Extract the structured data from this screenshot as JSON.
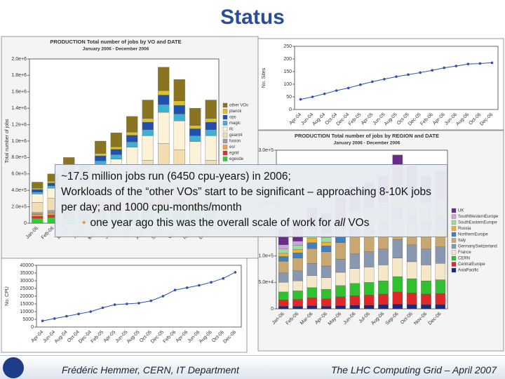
{
  "title": "Status",
  "textbox": {
    "lines": [
      "~17.5 million jobs run (6450 cpu-years) in 2006;",
      "Workloads of the “other VOs” start to be significant – approaching 8-10K jobs per day; and 1000 cpu-months/month"
    ],
    "bullet": [
      "one year ago this was the overall scale of work for ",
      "all",
      " VOs"
    ]
  },
  "footer": {
    "left": "Frédéric Hemmer, CERN, IT Department",
    "right": "The LHC Computing Grid – April 2007"
  },
  "chart_data": [
    {
      "type": "bar",
      "stacked": true,
      "title": "PRODUCTION Total number of jobs by VO and DATE",
      "subtitle": "January 2006 - December 2006",
      "y_label": "Total number of jobs",
      "categories": [
        "Jan-06",
        "Feb-06",
        "Mar-06",
        "Apr-06",
        "May-06",
        "Jun-06",
        "Jul-06",
        "Aug-06",
        "Sep-06",
        "Oct-06",
        "Nov-06",
        "Dec-06"
      ],
      "ylim": [
        0,
        2000000
      ],
      "yticks": [
        0,
        {
          "value": 200000,
          "label": "2.0e+5"
        },
        {
          "value": 400000,
          "label": "4.0e+5"
        },
        {
          "value": 600000,
          "label": "6.0e+5"
        },
        {
          "value": 800000,
          "label": "8.0e+5"
        },
        {
          "value": 1000000,
          "label": "1.0e+6"
        },
        {
          "value": 1200000,
          "label": "1.2e+6"
        },
        {
          "value": 1400000,
          "label": "1.4e+6"
        },
        {
          "value": 1600000,
          "label": "1.6e+6"
        },
        {
          "value": 1800000,
          "label": "1.8e+6"
        },
        {
          "value": 2000000,
          "label": "2.0e+6"
        }
      ],
      "grid": false,
      "series": [
        {
          "name": "egeode",
          "color": "#33cc33",
          "values": [
            60000,
            70000,
            100000,
            80000,
            120000,
            130000,
            160000,
            180000,
            230000,
            210000,
            170000,
            180000
          ]
        },
        {
          "name": "egrid",
          "color": "#e03030",
          "values": [
            25000,
            30000,
            40000,
            35000,
            50000,
            55000,
            65000,
            75000,
            95000,
            90000,
            70000,
            75000
          ]
        },
        {
          "name": "esr",
          "color": "#f0a040",
          "values": [
            20000,
            25000,
            30000,
            30000,
            40000,
            45000,
            50000,
            60000,
            75000,
            70000,
            55000,
            60000
          ]
        },
        {
          "name": "fusion",
          "color": "#a0a0a0",
          "values": [
            25000,
            30000,
            40000,
            35000,
            50000,
            55000,
            65000,
            75000,
            95000,
            90000,
            70000,
            75000
          ]
        },
        {
          "name": "geant4",
          "color": "#f2dcb0",
          "values": [
            125000,
            150000,
            200000,
            175000,
            250000,
            275000,
            325000,
            375000,
            475000,
            435000,
            350000,
            375000
          ]
        },
        {
          "name": "ilc",
          "color": "#fbf2d8",
          "values": [
            100000,
            120000,
            160000,
            140000,
            200000,
            220000,
            260000,
            300000,
            380000,
            350000,
            280000,
            300000
          ]
        },
        {
          "name": "magic",
          "color": "#40b0d0",
          "values": [
            25000,
            30000,
            40000,
            35000,
            50000,
            55000,
            65000,
            75000,
            95000,
            85000,
            70000,
            75000
          ]
        },
        {
          "name": "ops",
          "color": "#2050b0",
          "values": [
            30000,
            35000,
            50000,
            40000,
            60000,
            65000,
            80000,
            90000,
            115000,
            105000,
            85000,
            90000
          ]
        },
        {
          "name": "planck",
          "color": "#d8c030",
          "values": [
            15000,
            20000,
            25000,
            20000,
            30000,
            30000,
            40000,
            45000,
            55000,
            55000,
            40000,
            45000
          ]
        },
        {
          "name": "other VOs",
          "color": "#8a7420",
          "values": [
            75000,
            90000,
            115000,
            110000,
            150000,
            170000,
            190000,
            225000,
            285000,
            260000,
            210000,
            225000
          ]
        }
      ]
    },
    {
      "type": "line",
      "y_label": "No. Sites",
      "color": "#3050b0",
      "categories": [
        "Apr-04",
        "Jun-04",
        "Aug-04",
        "Oct-04",
        "Dec-04",
        "Feb-05",
        "Apr-05",
        "Jun-05",
        "Aug-05",
        "Oct-05",
        "Dec-05",
        "Feb-06",
        "Apr-06",
        "Jun-06",
        "Aug-06",
        "Oct-06",
        "Dec-06"
      ],
      "values": [
        40,
        50,
        62,
        75,
        85,
        98,
        110,
        120,
        130,
        138,
        146,
        155,
        165,
        172,
        180,
        182,
        185
      ],
      "ylim": [
        0,
        250
      ],
      "yticks": [
        0,
        50,
        100,
        150,
        200,
        250
      ],
      "grid": false
    },
    {
      "type": "bar",
      "stacked": true,
      "title": "PRODUCTION Total number of jobs by REGION and DATE",
      "subtitle": "January 2006 - December 2006",
      "categories": [
        "Jan-06",
        "Feb-06",
        "Mar-06",
        "Apr-06",
        "May-06",
        "Jun-06",
        "Jul-06",
        "Aug-06",
        "Sep-06",
        "Oct-06",
        "Nov-06",
        "Dec-06"
      ],
      "ylim": [
        0,
        300000
      ],
      "yticks": [
        0,
        {
          "value": 50000,
          "label": "5.0e+4"
        },
        {
          "value": 100000,
          "label": "1.0e+5"
        },
        {
          "value": 150000,
          "label": "1.5e+5"
        },
        {
          "value": 200000,
          "label": "2.0e+5"
        },
        {
          "value": 250000,
          "label": "2.5e+5"
        },
        {
          "value": 300000,
          "label": "3.0e+5"
        }
      ],
      "grid": false,
      "series": [
        {
          "name": "AsiaPacific",
          "color": "#1a2a80",
          "values": [
            5000,
            5000,
            6000,
            5000,
            6000,
            7000,
            7000,
            8000,
            9000,
            8000,
            8000,
            8000
          ]
        },
        {
          "name": "CentralEurope",
          "color": "#e02828",
          "values": [
            12000,
            13000,
            15000,
            14000,
            17000,
            18000,
            19000,
            20000,
            23000,
            22000,
            20000,
            21000
          ]
        },
        {
          "name": "CERN",
          "color": "#30c030",
          "values": [
            15000,
            16000,
            19000,
            18000,
            21000,
            23000,
            24000,
            25000,
            29000,
            27000,
            25000,
            26000
          ]
        },
        {
          "name": "France",
          "color": "#f4e8c8",
          "values": [
            18000,
            19000,
            23000,
            22000,
            25000,
            28000,
            29000,
            30000,
            35000,
            32000,
            30000,
            31000
          ]
        },
        {
          "name": "GermanySwitzerland",
          "color": "#8898b0",
          "values": [
            18000,
            19000,
            23000,
            22000,
            25000,
            28000,
            29000,
            30000,
            35000,
            32000,
            30000,
            31000
          ]
        },
        {
          "name": "Italy",
          "color": "#c8a870",
          "values": [
            22000,
            24000,
            28000,
            27000,
            31000,
            34000,
            36000,
            37000,
            43000,
            40000,
            37000,
            39000
          ]
        },
        {
          "name": "NorthernEurope",
          "color": "#4080c0",
          "values": [
            9000,
            10000,
            11000,
            11000,
            13000,
            14000,
            14000,
            15000,
            17000,
            16000,
            15000,
            16000
          ]
        },
        {
          "name": "Russia",
          "color": "#f0b030",
          "values": [
            6000,
            6000,
            8000,
            7000,
            8000,
            9000,
            10000,
            10000,
            12000,
            11000,
            10000,
            10000
          ]
        },
        {
          "name": "SouthEasternEurope",
          "color": "#a0d8a0",
          "values": [
            8000,
            8000,
            10000,
            9000,
            11000,
            12000,
            12000,
            13000,
            15000,
            14000,
            13000,
            13000
          ]
        },
        {
          "name": "SouthWesternEurope",
          "color": "#c8a8d8",
          "values": [
            8000,
            8000,
            10000,
            9000,
            11000,
            12000,
            12000,
            13000,
            15000,
            14000,
            13000,
            13000
          ]
        },
        {
          "name": "UK",
          "color": "#6a2c8a",
          "values": [
            30000,
            32000,
            38000,
            36000,
            42000,
            46000,
            48000,
            50000,
            58000,
            54000,
            50000,
            52000
          ]
        }
      ]
    },
    {
      "type": "line",
      "y_label": "No. CPU",
      "color": "#3050b0",
      "categories": [
        "Apr-04",
        "Jun-04",
        "Aug-04",
        "Oct-04",
        "Dec-04",
        "Feb-05",
        "Apr-05",
        "Jun-05",
        "Aug-05",
        "Oct-05",
        "Dec-05",
        "Feb-06",
        "Apr-06",
        "Jun-06",
        "Aug-06",
        "Oct-06",
        "Dec-06"
      ],
      "values": [
        4000,
        5500,
        7000,
        8500,
        10000,
        12500,
        14500,
        15000,
        15500,
        17000,
        20000,
        24000,
        25500,
        27000,
        29000,
        31500,
        35500
      ],
      "ylim": [
        0,
        40000
      ],
      "yticks": [
        0,
        5000,
        10000,
        15000,
        20000,
        25000,
        30000,
        35000,
        40000
      ],
      "grid": false
    }
  ]
}
